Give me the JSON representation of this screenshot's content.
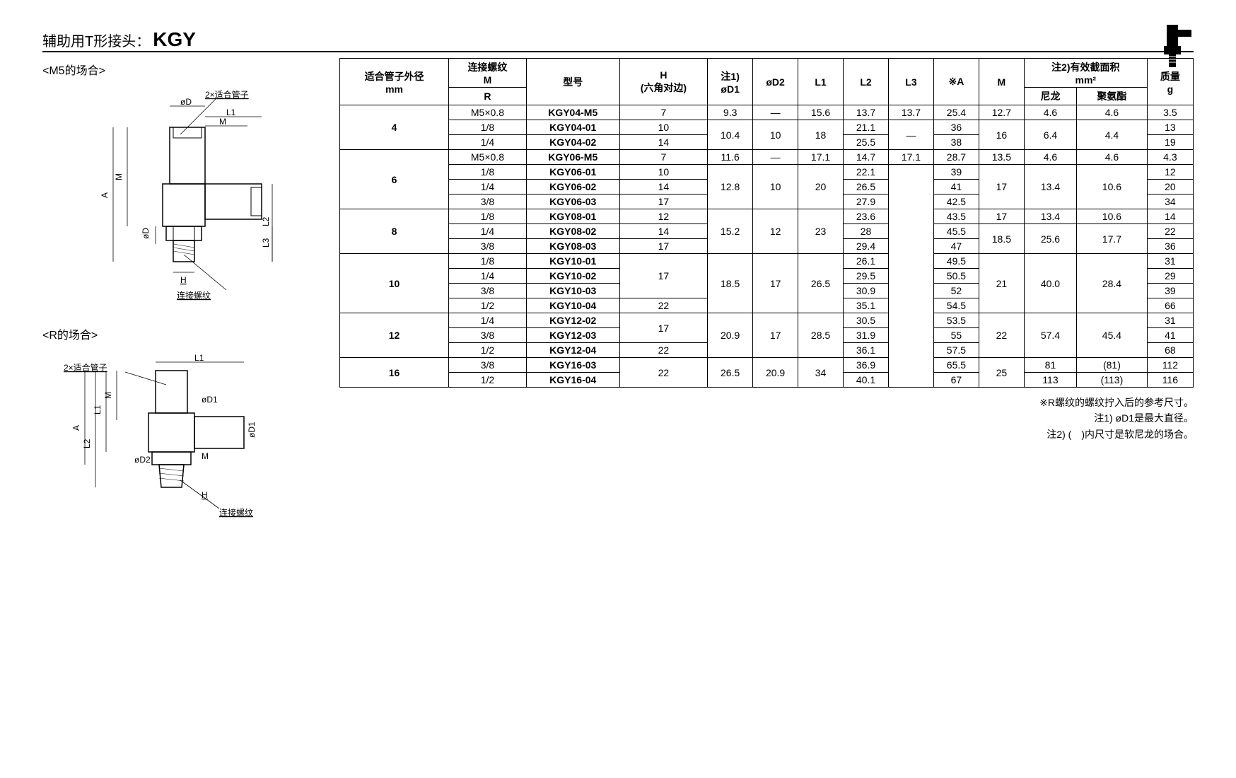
{
  "header": {
    "title": "辅助用T形接头：",
    "code": "KGY"
  },
  "diagrams": {
    "m5_label": "<M5的场合>",
    "r_label": "<R的场合>",
    "d_label": "øD",
    "d1_label": "øD1",
    "d2_label": "øD2",
    "l1_label": "L1",
    "l2_label": "L2",
    "l3_label": "L3",
    "m_label": "M",
    "a_label": "A",
    "h_label": "H",
    "tube_label": "2×适合管子",
    "thread_label": "连接螺纹"
  },
  "table": {
    "headers": {
      "tube_od": "适合管子外径",
      "tube_od_unit": "mm",
      "thread": "连接螺纹",
      "thread_m": "M",
      "thread_r": "R",
      "model": "型号",
      "h": "H",
      "h_sub": "(六角对边)",
      "d1": "øD1",
      "d1_note": "注1)",
      "d2": "øD2",
      "l1": "L1",
      "l2": "L2",
      "l3": "L3",
      "a": "※A",
      "m": "M",
      "area": "注2)有效截面积",
      "area_unit": "mm²",
      "nylon": "尼龙",
      "pu": "聚氨酯",
      "mass": "质量",
      "mass_unit": "g"
    },
    "rows": [
      {
        "od": "4",
        "thread": "M5×0.8",
        "model": "KGY04-M5",
        "h": "7",
        "d1": "9.3",
        "d2": "—",
        "l1": "15.6",
        "l2": "13.7",
        "l3": "13.7",
        "a": "25.4",
        "m": "12.7",
        "nylon": "4.6",
        "pu": "4.6",
        "mass": "3.5"
      },
      {
        "od": "",
        "thread": "1/8",
        "model": "KGY04-01",
        "h": "10",
        "d1": "10.4",
        "d2": "10",
        "l1": "18",
        "l2": "21.1",
        "l3": "—",
        "a": "36",
        "m": "16",
        "nylon": "6.4",
        "pu": "4.4",
        "mass": "13"
      },
      {
        "od": "",
        "thread": "1/4",
        "model": "KGY04-02",
        "h": "14",
        "d1": "",
        "d2": "",
        "l1": "",
        "l2": "25.5",
        "l3": "",
        "a": "38",
        "m": "",
        "nylon": "",
        "pu": "",
        "mass": "19"
      },
      {
        "od": "6",
        "thread": "M5×0.8",
        "model": "KGY06-M5",
        "h": "7",
        "d1": "11.6",
        "d2": "—",
        "l1": "17.1",
        "l2": "14.7",
        "l3": "17.1",
        "a": "28.7",
        "m": "13.5",
        "nylon": "4.6",
        "pu": "4.6",
        "mass": "4.3"
      },
      {
        "od": "",
        "thread": "1/8",
        "model": "KGY06-01",
        "h": "10",
        "d1": "12.8",
        "d2": "10",
        "l1": "20",
        "l2": "22.1",
        "l3": "",
        "a": "39",
        "m": "17",
        "nylon": "13.4",
        "pu": "10.6",
        "mass": "12"
      },
      {
        "od": "",
        "thread": "1/4",
        "model": "KGY06-02",
        "h": "14",
        "d1": "",
        "d2": "",
        "l1": "",
        "l2": "26.5",
        "l3": "",
        "a": "41",
        "m": "",
        "nylon": "",
        "pu": "",
        "mass": "20"
      },
      {
        "od": "",
        "thread": "3/8",
        "model": "KGY06-03",
        "h": "17",
        "d1": "",
        "d2": "",
        "l1": "",
        "l2": "27.9",
        "l3": "",
        "a": "42.5",
        "m": "",
        "nylon": "",
        "pu": "",
        "mass": "34"
      },
      {
        "od": "8",
        "thread": "1/8",
        "model": "KGY08-01",
        "h": "12",
        "d1": "15.2",
        "d2": "12",
        "l1": "23",
        "l2": "23.6",
        "l3": "",
        "a": "43.5",
        "m": "17",
        "nylon": "13.4",
        "pu": "10.6",
        "mass": "14"
      },
      {
        "od": "",
        "thread": "1/4",
        "model": "KGY08-02",
        "h": "14",
        "d1": "",
        "d2": "",
        "l1": "",
        "l2": "28",
        "l3": "",
        "a": "45.5",
        "m": "18.5",
        "nylon": "25.6",
        "pu": "17.7",
        "mass": "22"
      },
      {
        "od": "",
        "thread": "3/8",
        "model": "KGY08-03",
        "h": "17",
        "d1": "",
        "d2": "",
        "l1": "",
        "l2": "29.4",
        "l3": "",
        "a": "47",
        "m": "",
        "nylon": "",
        "pu": "",
        "mass": "36"
      },
      {
        "od": "10",
        "thread": "1/8",
        "model": "KGY10-01",
        "h": "17",
        "d1": "18.5",
        "d2": "17",
        "l1": "26.5",
        "l2": "26.1",
        "l3": "—",
        "a": "49.5",
        "m": "21",
        "nylon": "40.0",
        "pu": "28.4",
        "mass": "31"
      },
      {
        "od": "",
        "thread": "1/4",
        "model": "KGY10-02",
        "h": "",
        "d1": "",
        "d2": "",
        "l1": "",
        "l2": "29.5",
        "l3": "",
        "a": "50.5",
        "m": "",
        "nylon": "",
        "pu": "",
        "mass": "29"
      },
      {
        "od": "",
        "thread": "3/8",
        "model": "KGY10-03",
        "h": "",
        "d1": "",
        "d2": "",
        "l1": "",
        "l2": "30.9",
        "l3": "",
        "a": "52",
        "m": "",
        "nylon": "",
        "pu": "",
        "mass": "39"
      },
      {
        "od": "",
        "thread": "1/2",
        "model": "KGY10-04",
        "h": "22",
        "d1": "",
        "d2": "",
        "l1": "",
        "l2": "35.1",
        "l3": "",
        "a": "54.5",
        "m": "",
        "nylon": "",
        "pu": "",
        "mass": "66"
      },
      {
        "od": "12",
        "thread": "1/4",
        "model": "KGY12-02",
        "h": "17",
        "d1": "20.9",
        "d2": "17",
        "l1": "28.5",
        "l2": "30.5",
        "l3": "",
        "a": "53.5",
        "m": "22",
        "nylon": "57.4",
        "pu": "45.4",
        "mass": "31"
      },
      {
        "od": "",
        "thread": "3/8",
        "model": "KGY12-03",
        "h": "",
        "d1": "",
        "d2": "",
        "l1": "",
        "l2": "31.9",
        "l3": "",
        "a": "55",
        "m": "",
        "nylon": "",
        "pu": "",
        "mass": "41"
      },
      {
        "od": "",
        "thread": "1/2",
        "model": "KGY12-04",
        "h": "22",
        "d1": "",
        "d2": "",
        "l1": "",
        "l2": "36.1",
        "l3": "",
        "a": "57.5",
        "m": "",
        "nylon": "",
        "pu": "",
        "mass": "68"
      },
      {
        "od": "16",
        "thread": "3/8",
        "model": "KGY16-03",
        "h": "22",
        "d1": "26.5",
        "d2": "20.9",
        "l1": "34",
        "l2": "36.9",
        "l3": "",
        "a": "65.5",
        "m": "25",
        "nylon": "81",
        "pu": "(81)",
        "mass": "112"
      },
      {
        "od": "",
        "thread": "1/2",
        "model": "KGY16-04",
        "h": "",
        "d1": "",
        "d2": "",
        "l1": "",
        "l2": "40.1",
        "l3": "",
        "a": "67",
        "m": "",
        "nylon": "113",
        "pu": "(113)",
        "mass": "116"
      }
    ]
  },
  "notes": {
    "n1": "※R螺纹的螺纹拧入后的参考尺寸。",
    "n2": "注1) øD1是最大直径。",
    "n3": "注2) (　)内尺寸是软尼龙的场合。"
  }
}
